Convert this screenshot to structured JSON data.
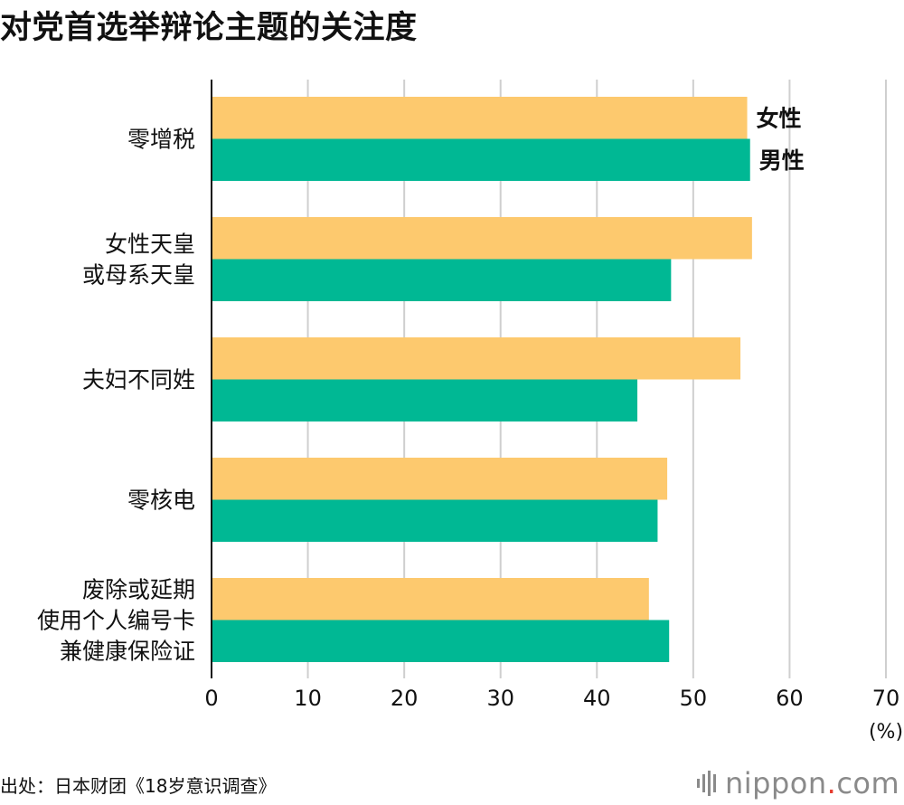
{
  "title": "对党首选举辩论主题的关注度",
  "source": "出处：日本财团《18岁意识调查》",
  "logo": {
    "name": "nippon",
    "dot": ".",
    "suffix": "com"
  },
  "colors": {
    "female": "#fdc96e",
    "male": "#00b894",
    "grid": "#cfcfcf",
    "axis": "#111111",
    "logo": "#8a8a8a"
  },
  "chart_data": {
    "type": "bar",
    "orientation": "horizontal",
    "title": "对党首选举辩论主题的关注度",
    "categories": [
      [
        "零增税"
      ],
      [
        "女性天皇",
        "或母系天皇"
      ],
      [
        "夫妇不同姓"
      ],
      [
        "零核电"
      ],
      [
        "废除或延期",
        "使用个人编号卡",
        "兼健康保险证"
      ]
    ],
    "series": [
      {
        "name": "女性",
        "color": "#fdc96e",
        "values": [
          55.6,
          56.1,
          54.9,
          47.3,
          45.4
        ]
      },
      {
        "name": "男性",
        "color": "#00b894",
        "values": [
          55.9,
          47.7,
          44.2,
          46.3,
          47.5
        ]
      }
    ],
    "xlim": [
      0,
      70
    ],
    "xticks": [
      "0",
      "10",
      "20",
      "30",
      "40",
      "50",
      "60",
      "70"
    ],
    "unit": "(%)",
    "grid": true,
    "legend_placement": "at the end of the first category's bars"
  }
}
